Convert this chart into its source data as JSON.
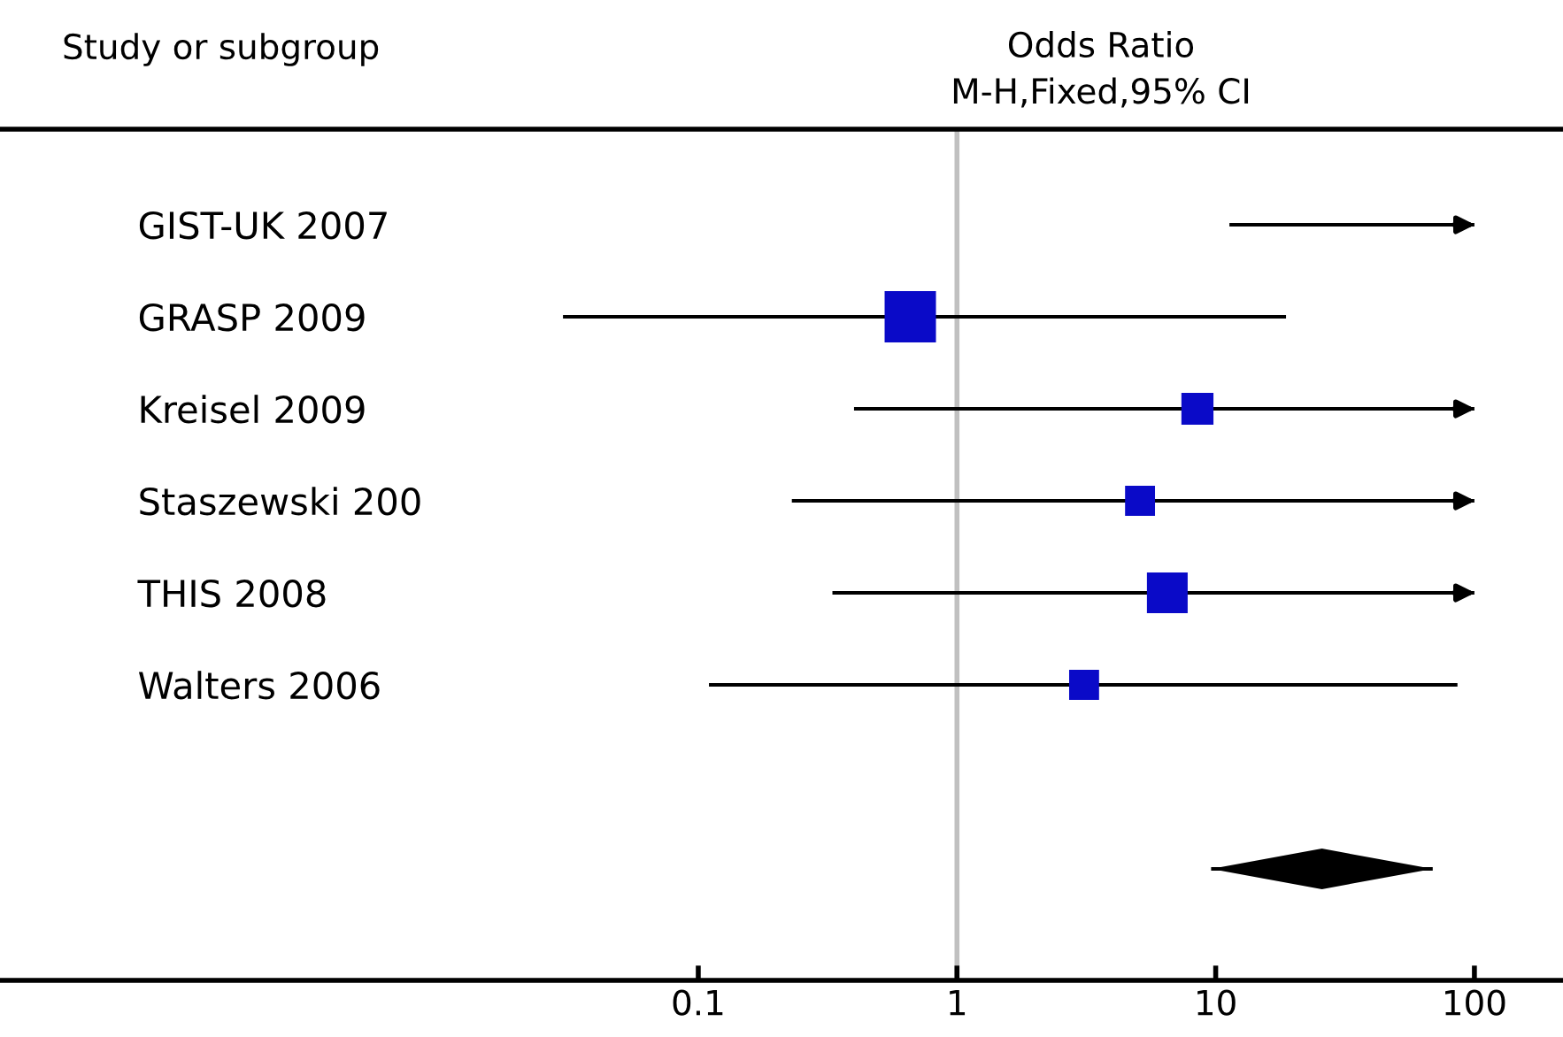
{
  "chart_data": {
    "type": "bubble",
    "title": "Odds Ratio\nM-H,Fixed,95% CI",
    "ylabel": "Study or subgroup",
    "categories": [
      "GIST-UK 2007",
      "GRASP 2009",
      "Kreisel 2009",
      "Staszewski 200",
      "THIS 2008",
      "Walters 2006",
      null,
      null
    ],
    "series": [
      {
        "type": "bar",
        "color": "#000000",
        "base": [
          11.3,
          0.03,
          0.4,
          0.23,
          0.33,
          0.11,
          null,
          9.6
        ],
        "values": [
          88.7,
          18.67,
          99.6,
          99.77,
          99.67,
          85.89,
          null,
          59.4
        ]
      },
      {
        "color": "#0a0ac8",
        "marker": "square",
        "values": [
          null,
          0.66,
          8.5,
          5.1,
          6.5,
          3.1,
          null,
          null
        ],
        "sizes": [
          null,
          1,
          0.39,
          0.34,
          0.63,
          0.34,
          null,
          null
        ]
      }
    ],
    "orientation": "horizontal",
    "legend": false,
    "log": "x",
    "xlim": [
      0.0002,
      220
    ],
    "xticks": [
      0.1,
      1,
      10,
      100
    ],
    "grid": false,
    "ref_lines": [
      {
        "axis": "x",
        "value": 1,
        "color": "#c0c0c0"
      }
    ]
  }
}
